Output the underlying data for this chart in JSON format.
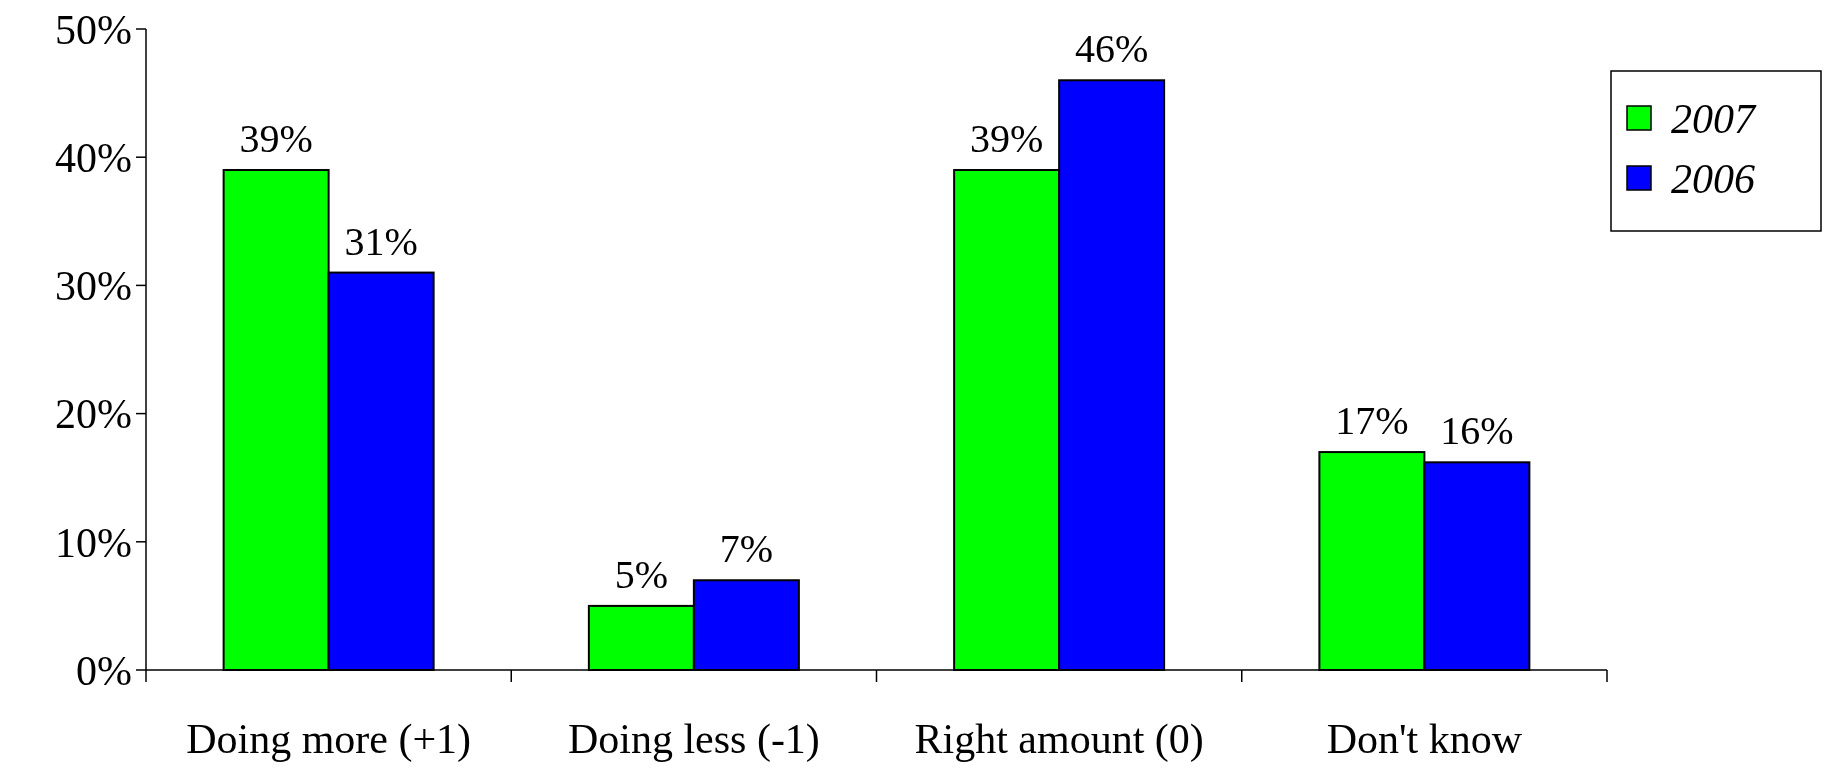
{
  "chart_data": {
    "type": "bar",
    "categories": [
      "Doing more (+1)",
      "Doing less (-1)",
      "Right amount (0)",
      "Don't know"
    ],
    "series": [
      {
        "name": "2007",
        "color": "#00ff00",
        "values": [
          39,
          5,
          39,
          17
        ],
        "value_labels": [
          "39%",
          "5%",
          "39%",
          "17%"
        ]
      },
      {
        "name": "2006",
        "color": "#0000ff",
        "values": [
          31,
          7,
          46,
          16.2
        ],
        "value_labels": [
          "31%",
          "7%",
          "46%",
          "16%"
        ]
      }
    ],
    "ylim": [
      0,
      50
    ],
    "yticks": [
      {
        "value": 0,
        "label": "0%"
      },
      {
        "value": 10,
        "label": "10%"
      },
      {
        "value": 20,
        "label": "20%"
      },
      {
        "value": 30,
        "label": "30%"
      },
      {
        "value": 40,
        "label": "40%"
      },
      {
        "value": 50,
        "label": "50%"
      }
    ],
    "grid": false,
    "legend": "top right"
  }
}
